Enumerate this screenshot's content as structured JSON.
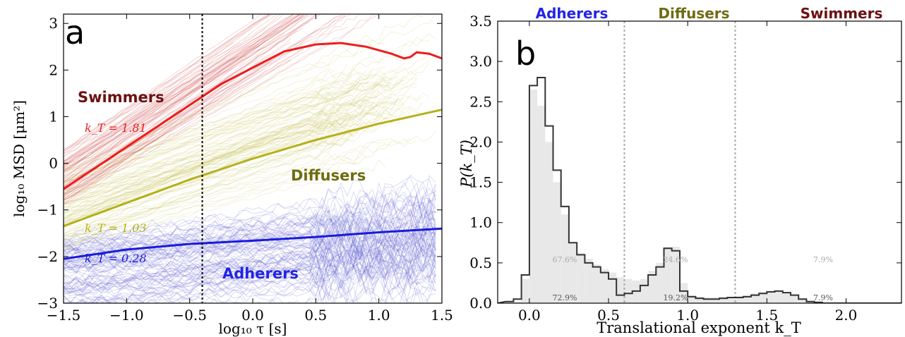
{
  "chart_data": [
    {
      "panel_label": "a",
      "type": "line",
      "x_scale": "log10",
      "y_scale": "log10",
      "xlabel": "log₁₀ τ [s]",
      "ylabel": "log₁₀ MSD [μm²]",
      "xlim": [
        -1.5,
        1.5
      ],
      "ylim": [
        -3,
        3.2
      ],
      "xticks": [
        "−1.5",
        "−1.0",
        "−0.5",
        "0.0",
        "0.5",
        "1.0",
        "1.5"
      ],
      "yticks": [
        "−3",
        "−2",
        "−1",
        "0",
        "1",
        "2",
        "3"
      ],
      "vline_x": -0.4,
      "series": [
        {
          "name": "Swimmers",
          "color": "#ee1c1c",
          "exponent_label": "k_T = 1.81",
          "x": [
            -1.5,
            -1.25,
            -1.0,
            -0.75,
            -0.5,
            -0.25,
            0.0,
            0.25,
            0.5,
            0.7,
            0.9,
            1.1,
            1.2,
            1.25,
            1.3,
            1.4,
            1.5
          ],
          "y": [
            -0.55,
            -0.1,
            0.35,
            0.8,
            1.25,
            1.7,
            2.05,
            2.4,
            2.55,
            2.58,
            2.5,
            2.35,
            2.25,
            2.28,
            2.38,
            2.35,
            2.25
          ]
        },
        {
          "name": "Diffusers",
          "color": "#b5b11a",
          "exponent_label": "k_T = 1.03",
          "x": [
            -1.5,
            -1.0,
            -0.5,
            0.0,
            0.5,
            1.0,
            1.5
          ],
          "y": [
            -1.35,
            -0.85,
            -0.35,
            0.1,
            0.5,
            0.85,
            1.15
          ]
        },
        {
          "name": "Adherers",
          "color": "#1a1add",
          "exponent_label": "k_T = 0.28",
          "x": [
            -1.5,
            -1.0,
            -0.5,
            0.0,
            0.5,
            1.0,
            1.5
          ],
          "y": [
            -2.05,
            -1.85,
            -1.73,
            -1.66,
            -1.58,
            -1.48,
            -1.4
          ]
        }
      ]
    },
    {
      "panel_label": "b",
      "type": "bar",
      "xlabel": "Translational exponent k_T",
      "ylabel": "P(k_T)",
      "xlim": [
        -0.2,
        2.35
      ],
      "ylim": [
        0,
        3.5
      ],
      "xticks": [
        "0.0",
        "0.5",
        "1.0",
        "1.5",
        "2.0"
      ],
      "yticks": [
        "0.0",
        "0.5",
        "1.0",
        "1.5",
        "2.0",
        "2.5",
        "3.0",
        "3.5"
      ],
      "boundaries": [
        0.6,
        1.3
      ],
      "region_labels": [
        {
          "name": "Adherers",
          "color": "#2323e6",
          "filled_pct": "67.6%",
          "step_pct": "72.9%"
        },
        {
          "name": "Diffusers",
          "color": "#6e6c12",
          "filled_pct": "24.6%",
          "step_pct": "19.2%"
        },
        {
          "name": "Swimmers",
          "color": "#6b1111",
          "filled_pct": "7.9%",
          "step_pct": "7.9%"
        }
      ],
      "bin_start": -0.15,
      "bin_width": 0.05,
      "step_values": [
        0.02,
        0.05,
        0.35,
        2.7,
        2.8,
        2.2,
        1.65,
        1.2,
        0.75,
        0.6,
        0.5,
        0.45,
        0.38,
        0.3,
        0.1,
        0.12,
        0.15,
        0.22,
        0.35,
        0.45,
        0.68,
        0.65,
        0.15,
        0.08,
        0.06,
        0.05,
        0.05,
        0.06,
        0.07,
        0.07,
        0.08,
        0.1,
        0.12,
        0.14,
        0.15,
        0.13,
        0.1,
        0.05,
        0.02,
        0.01
      ],
      "filled_values": [
        0.0,
        0.02,
        0.3,
        2.65,
        2.45,
        2.0,
        1.5,
        1.1,
        0.75,
        0.62,
        0.55,
        0.48,
        0.42,
        0.38,
        0.32,
        0.3,
        0.28,
        0.3,
        0.4,
        0.5,
        0.7,
        0.7,
        0.25,
        0.1,
        0.08,
        0.07,
        0.07,
        0.08,
        0.08,
        0.09,
        0.1,
        0.12,
        0.14,
        0.15,
        0.15,
        0.13,
        0.1,
        0.05,
        0.02,
        0.01
      ]
    }
  ],
  "colors": {
    "swimmer_traces": "#d05050",
    "diffuser_traces": "#c8c65a",
    "adherer_traces": "#5a5ad0",
    "hist_fill": "#e8e8e8",
    "hist_step": "#333333",
    "boundary_line": "#aaaaaa"
  }
}
